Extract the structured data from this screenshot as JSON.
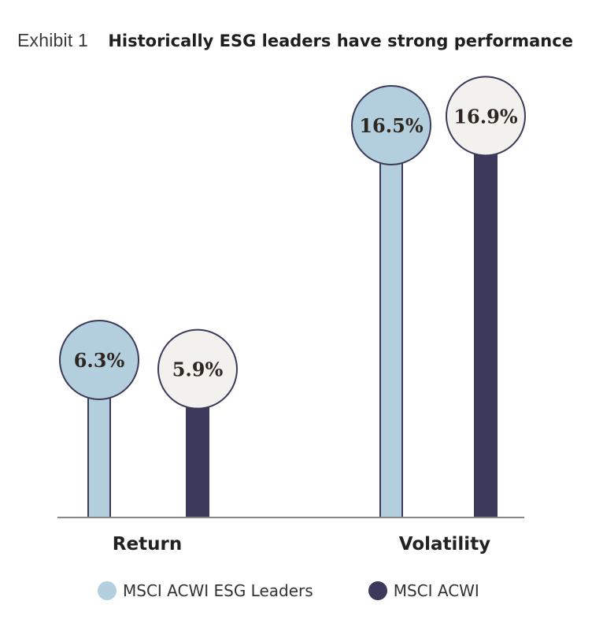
{
  "header": {
    "exhibit": "Exhibit 1",
    "title": "Historically ESG leaders have strong performance"
  },
  "chart_data": {
    "type": "bar",
    "style": "lollipop",
    "categories": [
      "Return",
      "Volatility"
    ],
    "series": [
      {
        "name": "MSCI ACWI ESG Leaders",
        "values": [
          6.3,
          16.5
        ],
        "labels": [
          "6.3%",
          "16.5%"
        ],
        "color": "#b3cfde",
        "bubble_fill": "#b3cfde"
      },
      {
        "name": "MSCI ACWI",
        "values": [
          5.9,
          16.9
        ],
        "labels": [
          "5.9%",
          "16.9%"
        ],
        "color": "#3c3a5a",
        "bubble_fill": "#f3f1ee"
      }
    ],
    "ylim": [
      0,
      20
    ],
    "grid": false,
    "legend_position": "bottom",
    "outline_color": "#3c3a5a",
    "axis_color": "#888888"
  }
}
